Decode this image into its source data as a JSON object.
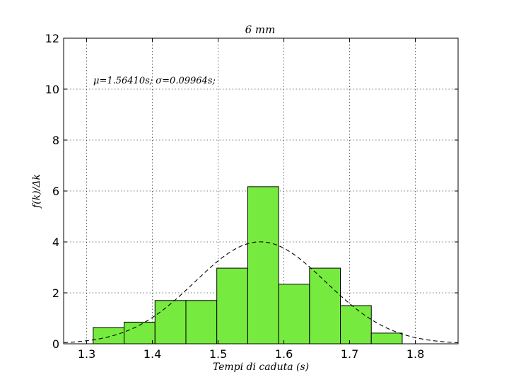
{
  "chart_data": {
    "type": "bar",
    "title": "6 mm",
    "xlabel": "Tempi di caduta (s)",
    "ylabel": "f(k)/Δk",
    "annotation": "μ=1.56410s; σ=0.09964s;",
    "xlim": [
      1.265,
      1.865
    ],
    "ylim": [
      0,
      12
    ],
    "x_ticks": [
      "1.3",
      "1.4",
      "1.5",
      "1.6",
      "1.7",
      "1.8"
    ],
    "x_tick_values": [
      1.3,
      1.4,
      1.5,
      1.6,
      1.7,
      1.8
    ],
    "y_ticks": [
      "0",
      "2",
      "4",
      "6",
      "8",
      "10",
      "12"
    ],
    "y_tick_values": [
      0,
      2,
      4,
      6,
      8,
      10,
      12
    ],
    "grid": true,
    "bar_color": "#77ea3f",
    "bar_edge_color": "#000000",
    "bins": [
      {
        "x0": 1.31,
        "x1": 1.357,
        "value": 0.64
      },
      {
        "x0": 1.357,
        "x1": 1.404,
        "value": 0.85
      },
      {
        "x0": 1.404,
        "x1": 1.451,
        "value": 1.7
      },
      {
        "x0": 1.451,
        "x1": 1.498,
        "value": 1.7
      },
      {
        "x0": 1.498,
        "x1": 1.545,
        "value": 2.97
      },
      {
        "x0": 1.545,
        "x1": 1.592,
        "value": 6.17
      },
      {
        "x0": 1.592,
        "x1": 1.639,
        "value": 2.34
      },
      {
        "x0": 1.639,
        "x1": 1.686,
        "value": 2.97
      },
      {
        "x0": 1.686,
        "x1": 1.733,
        "value": 1.5
      },
      {
        "x0": 1.733,
        "x1": 1.78,
        "value": 0.42
      }
    ],
    "curve": {
      "style": "dashed",
      "mean": 1.5641,
      "sigma": 0.09964,
      "color": "#000000"
    }
  }
}
